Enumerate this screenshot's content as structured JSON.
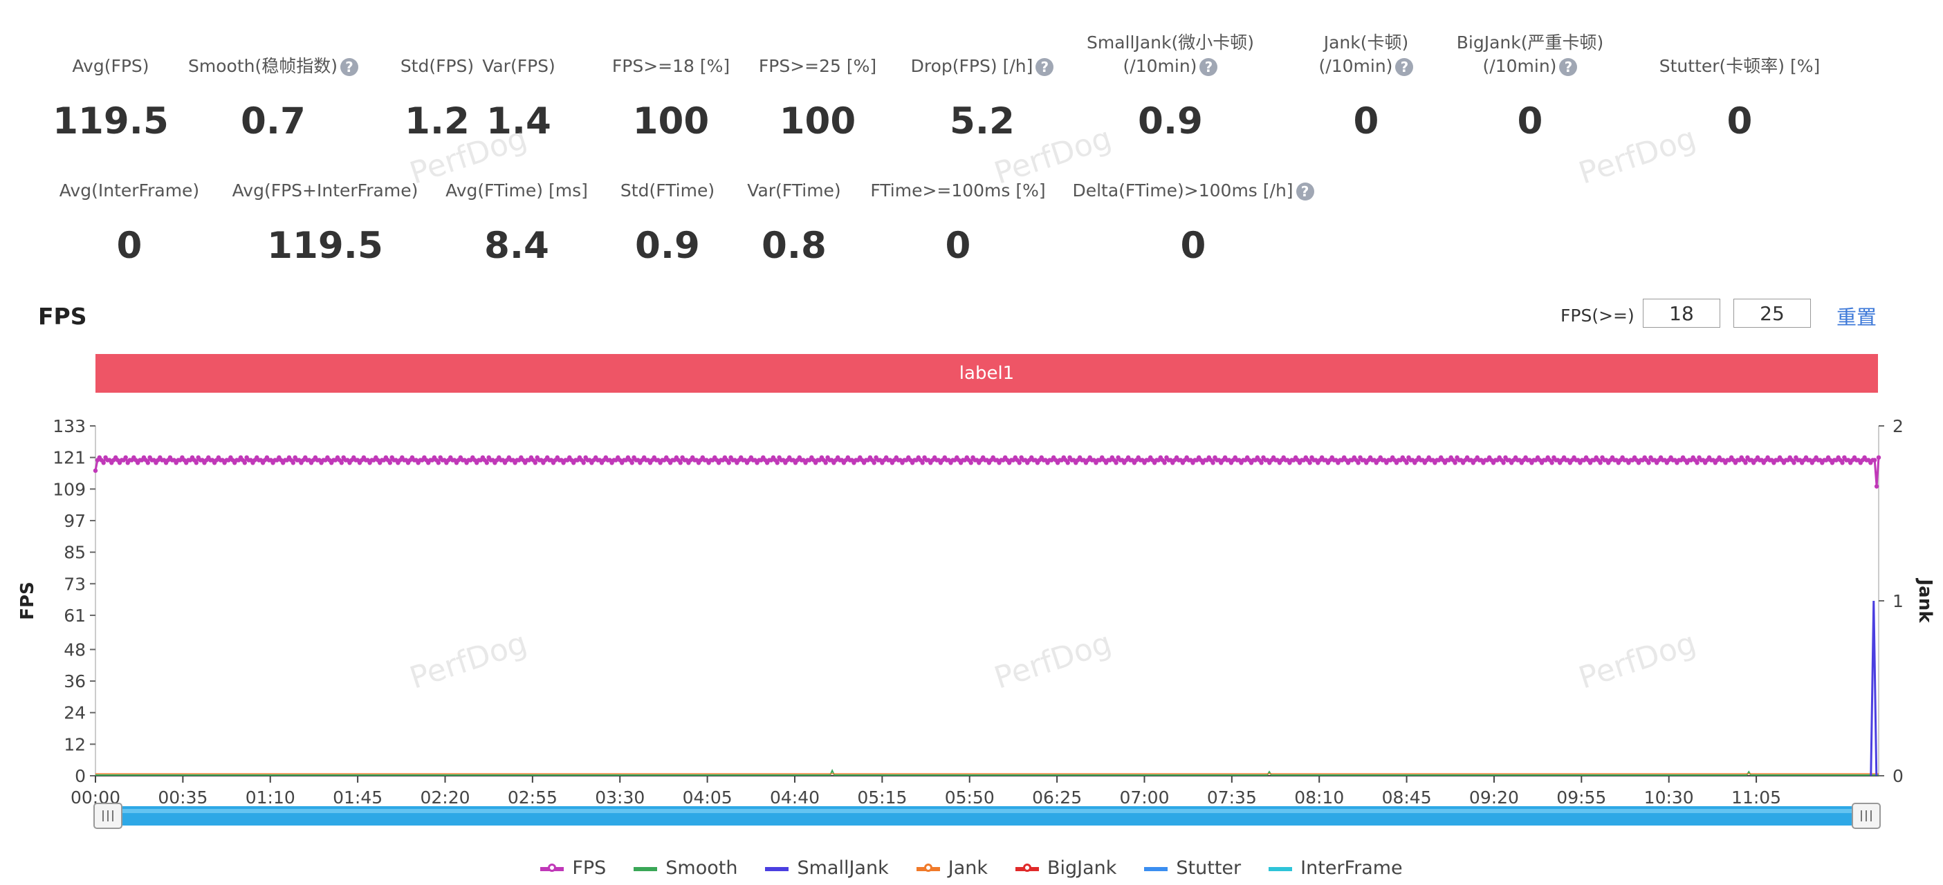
{
  "metrics_row1": [
    {
      "label": "Avg(FPS)",
      "value": "119.5",
      "help": false
    },
    {
      "label": "Smooth(稳帧指数)",
      "value": "0.7",
      "help": true
    },
    {
      "label": "Std(FPS)",
      "value": "1.2",
      "help": false
    },
    {
      "label": "Var(FPS)",
      "value": "1.4",
      "help": false
    },
    {
      "label": "FPS>=18 [%]",
      "value": "100",
      "help": false
    },
    {
      "label": "FPS>=25 [%]",
      "value": "100",
      "help": false
    },
    {
      "label": "Drop(FPS) [/h]",
      "value": "5.2",
      "help": true
    },
    {
      "label": "SmallJank(微小卡顿)",
      "label2": "(/10min)",
      "value": "0.9",
      "help": true
    },
    {
      "label": "Jank(卡顿)",
      "label2": "(/10min)",
      "value": "0",
      "help": true
    },
    {
      "label": "BigJank(严重卡顿)",
      "label2": "(/10min)",
      "value": "0",
      "help": true
    },
    {
      "label": "Stutter(卡顿率) [%]",
      "value": "0",
      "help": false
    }
  ],
  "metrics_row2": [
    {
      "label": "Avg(InterFrame)",
      "value": "0",
      "help": false
    },
    {
      "label": "Avg(FPS+InterFrame)",
      "value": "119.5",
      "help": false
    },
    {
      "label": "Avg(FTime) [ms]",
      "value": "8.4",
      "help": false
    },
    {
      "label": "Std(FTime)",
      "value": "0.9",
      "help": false
    },
    {
      "label": "Var(FTime)",
      "value": "0.8",
      "help": false
    },
    {
      "label": "FTime>=100ms [%]",
      "value": "0",
      "help": false
    },
    {
      "label": "Delta(FTime)>100ms [/h]",
      "value": "0",
      "help": true
    }
  ],
  "help_icon_glyph": "?",
  "watermark_text": "PerfDog",
  "section": {
    "title": "FPS",
    "threshold_label": "FPS(>=)",
    "threshold_low": "18",
    "threshold_high": "25",
    "reset_label": "重置"
  },
  "label_bar": {
    "text": "label1",
    "color": "#ee5566"
  },
  "chart_data": {
    "type": "line",
    "ylabel": "FPS",
    "y2label": "Jank",
    "ylim": [
      0,
      133
    ],
    "y2lim": [
      0,
      2
    ],
    "yticks": [
      "0",
      "12",
      "24",
      "36",
      "48",
      "61",
      "73",
      "85",
      "97",
      "109",
      "121",
      "133"
    ],
    "y2ticks": [
      "0",
      "1",
      "2"
    ],
    "xticks": [
      "00:00",
      "00:35",
      "01:10",
      "01:45",
      "02:20",
      "02:55",
      "03:30",
      "04:05",
      "04:40",
      "05:15",
      "05:50",
      "06:25",
      "07:00",
      "07:35",
      "08:10",
      "08:45",
      "09:20",
      "09:55",
      "10:30",
      "11:05"
    ],
    "x_range_seconds": [
      0,
      714
    ],
    "fps_samples": [
      116,
      120,
      121,
      120,
      119,
      121,
      120,
      120,
      119,
      120,
      121,
      120,
      119,
      120,
      120,
      121,
      119,
      120,
      120,
      121,
      120,
      119,
      120,
      120,
      121,
      120,
      119,
      121,
      120,
      120,
      119,
      120,
      121,
      120,
      120,
      119,
      120,
      121,
      120,
      120,
      119,
      120,
      120,
      121,
      120,
      119,
      120,
      120,
      121,
      120,
      119,
      121,
      120,
      120,
      119,
      120,
      121,
      120,
      120,
      119,
      120,
      121,
      120,
      120,
      119,
      120,
      120,
      121,
      120,
      119,
      120,
      120,
      121,
      120,
      119,
      121,
      120,
      120,
      119,
      120,
      121,
      120,
      120,
      119,
      120,
      121,
      120,
      120,
      119,
      120,
      120,
      121,
      120,
      119,
      120,
      120,
      121,
      120,
      119,
      121,
      120,
      120,
      119,
      120,
      121,
      120,
      120,
      119,
      120,
      121,
      120,
      120,
      119,
      120,
      120,
      121,
      120,
      119,
      120,
      120,
      121,
      120,
      119,
      121,
      120,
      120,
      119,
      120,
      121,
      120,
      120,
      119,
      120,
      121,
      120,
      120,
      119,
      120,
      120,
      121,
      120,
      119,
      120,
      120,
      121,
      120,
      119,
      121,
      120,
      120,
      119,
      120,
      121,
      120,
      120,
      119,
      120,
      121,
      120,
      120,
      119,
      120,
      120,
      121,
      120,
      119,
      120,
      120,
      121,
      120,
      119,
      121,
      120,
      120,
      119,
      120,
      121,
      120,
      120,
      119,
      120,
      121,
      120,
      120,
      119,
      120,
      120,
      121,
      120,
      119,
      120,
      120,
      121,
      120,
      119,
      121,
      120,
      120,
      119,
      120,
      121,
      120,
      120,
      119,
      120,
      121,
      120,
      120,
      119,
      120,
      120,
      121,
      120,
      119,
      120,
      120,
      121,
      120,
      119,
      121,
      120,
      120,
      119,
      120,
      121,
      120,
      120,
      119,
      120,
      121,
      120,
      120,
      119,
      120,
      120,
      121,
      120,
      119,
      120,
      120,
      121,
      120,
      119,
      121,
      120,
      120,
      119,
      120,
      121,
      120,
      120,
      119,
      120,
      121,
      120,
      120,
      119,
      120,
      120,
      121,
      120,
      119,
      120,
      120,
      121,
      120,
      119,
      121,
      120,
      120,
      119,
      120,
      121,
      120,
      120,
      119,
      120,
      121,
      120,
      120,
      119,
      120,
      120,
      121,
      120,
      119,
      120,
      120,
      121,
      120,
      119,
      121,
      120,
      120,
      119,
      120,
      121,
      120,
      120,
      119,
      120,
      121,
      120,
      120,
      119,
      120,
      120,
      121,
      120,
      119,
      120,
      120,
      121,
      120,
      119,
      121,
      120,
      120,
      119,
      120,
      121,
      120,
      120,
      119,
      120,
      121,
      120,
      120,
      119,
      120,
      120,
      121,
      120,
      119,
      120,
      120,
      121,
      120,
      119,
      121,
      120,
      120,
      119,
      120,
      121,
      120,
      120,
      119,
      120,
      121,
      120,
      120,
      119,
      120,
      120,
      121,
      120,
      119,
      120,
      120,
      121,
      120,
      119,
      121,
      120,
      120,
      119,
      120,
      121,
      120,
      120,
      119,
      120,
      121,
      120,
      120,
      119,
      120,
      120,
      121,
      120,
      119,
      120,
      120,
      121,
      120,
      119,
      121,
      120,
      120,
      119,
      120,
      121,
      120,
      120,
      119,
      120,
      121,
      120,
      120,
      119,
      120,
      120,
      121,
      120,
      119,
      120,
      120,
      121,
      120,
      119,
      121,
      120,
      120,
      119,
      120,
      121,
      120,
      120,
      119,
      120,
      121,
      120,
      120,
      119,
      120,
      120,
      121,
      120,
      119,
      120,
      120,
      121,
      120,
      119,
      121,
      120,
      120,
      119,
      120,
      121,
      120,
      120,
      119,
      120,
      121,
      120,
      120,
      119,
      120,
      120,
      121,
      120,
      119,
      120,
      120,
      121,
      120,
      119,
      121,
      120,
      120,
      119,
      120,
      121,
      120,
      120,
      119,
      120,
      121,
      120,
      120,
      119,
      120,
      120,
      121,
      120,
      119,
      120,
      120,
      121,
      120,
      119,
      121,
      120,
      120,
      119,
      120,
      121,
      120,
      120,
      119,
      120,
      121,
      120,
      120,
      119,
      120,
      120,
      121,
      120,
      119,
      120,
      120,
      121,
      120,
      119,
      121,
      120,
      120,
      119,
      120,
      121,
      120,
      120,
      119,
      120,
      121,
      120,
      120,
      119,
      120,
      120,
      121,
      120,
      119,
      120,
      120,
      121,
      120,
      119,
      121,
      120,
      120,
      119,
      120,
      121,
      120,
      120,
      119,
      120,
      121,
      120,
      120,
      119,
      120,
      120,
      121,
      120,
      119,
      120,
      120,
      121,
      120,
      119,
      121,
      120,
      120,
      119,
      120,
      121,
      120,
      120,
      119,
      120,
      121,
      120,
      120,
      119,
      120,
      120,
      121,
      120,
      119,
      120,
      120,
      121,
      120,
      119,
      121,
      120,
      120,
      119,
      120,
      121,
      120,
      120,
      119,
      120,
      121,
      120,
      120,
      119,
      120,
      120,
      121,
      120,
      119,
      120,
      120,
      121,
      120,
      119,
      121,
      120,
      120,
      119,
      120,
      121,
      120,
      120,
      119,
      120,
      121,
      120,
      120,
      119,
      120,
      120,
      121,
      120,
      119,
      120,
      120,
      121,
      120,
      119,
      121,
      120,
      120,
      119,
      120,
      121,
      120,
      120,
      119,
      120,
      121,
      120,
      120,
      119,
      120,
      120,
      121,
      120,
      119,
      120,
      120,
      121,
      120,
      119,
      121,
      120,
      120,
      119,
      120,
      121,
      120,
      120,
      119,
      120,
      121,
      120,
      120,
      119,
      120,
      120,
      121,
      120,
      119,
      120,
      120,
      121,
      120,
      119,
      121,
      120,
      120,
      119,
      120,
      121,
      120,
      120,
      119,
      120,
      121,
      120,
      120,
      119,
      120,
      120,
      121,
      120,
      119,
      120,
      120,
      121,
      120,
      119,
      121,
      120,
      120,
      119,
      120,
      121,
      120,
      120,
      119,
      120,
      121,
      120,
      120,
      119,
      120,
      120,
      121,
      120,
      119,
      120,
      120,
      121,
      120,
      119,
      121,
      120,
      120,
      119,
      120,
      121,
      120,
      120,
      119,
      120,
      121,
      120,
      120,
      119,
      120,
      120,
      121,
      120,
      119,
      120,
      120,
      121,
      120,
      119,
      121,
      120,
      120,
      119,
      120,
      121,
      120,
      120,
      119,
      120,
      121,
      120,
      120,
      119,
      120,
      120,
      121,
      120,
      119,
      120,
      120,
      121,
      120,
      119,
      121,
      120,
      120,
      119,
      120,
      121,
      120,
      120,
      119,
      120,
      121,
      120,
      120,
      119,
      120,
      120,
      121,
      120,
      119,
      120,
      120,
      121,
      120,
      119,
      121,
      120,
      120,
      119,
      120,
      121,
      120,
      120,
      119,
      120,
      121,
      120,
      120,
      119,
      120,
      120,
      121,
      120,
      119,
      120,
      120,
      121,
      120,
      119,
      121,
      120,
      120,
      119,
      120,
      121,
      120,
      120,
      119,
      120,
      121,
      120,
      120,
      119,
      120,
      120,
      121,
      120,
      119,
      120,
      120,
      121,
      120,
      119,
      121,
      120,
      120,
      119,
      120,
      121,
      120,
      120,
      119,
      120,
      121,
      120,
      120,
      119,
      120,
      120,
      121,
      120,
      119,
      120,
      120,
      121,
      120,
      119,
      121,
      120,
      120,
      119,
      120,
      121,
      120,
      120,
      119,
      120,
      121,
      120,
      120,
      119,
      120,
      120,
      110,
      121
    ],
    "smooth_spikes": [
      {
        "t": 295,
        "v": 2
      },
      {
        "t": 470,
        "v": 1.5
      },
      {
        "t": 662,
        "v": 1.5
      }
    ],
    "smalljank_events": [
      {
        "t": 712,
        "v": 1
      }
    ],
    "series": [
      {
        "name": "FPS",
        "color": "#c038b8",
        "axis": "left"
      },
      {
        "name": "Smooth",
        "color": "#3aa757",
        "axis": "left"
      },
      {
        "name": "SmallJank",
        "color": "#4b3fe0",
        "axis": "right"
      },
      {
        "name": "Jank",
        "color": "#f07a2a",
        "axis": "right"
      },
      {
        "name": "BigJank",
        "color": "#e02a2a",
        "axis": "right"
      },
      {
        "name": "Stutter",
        "color": "#3b8ef0",
        "axis": "right"
      },
      {
        "name": "InterFrame",
        "color": "#2ec4d8",
        "axis": "left"
      }
    ]
  }
}
